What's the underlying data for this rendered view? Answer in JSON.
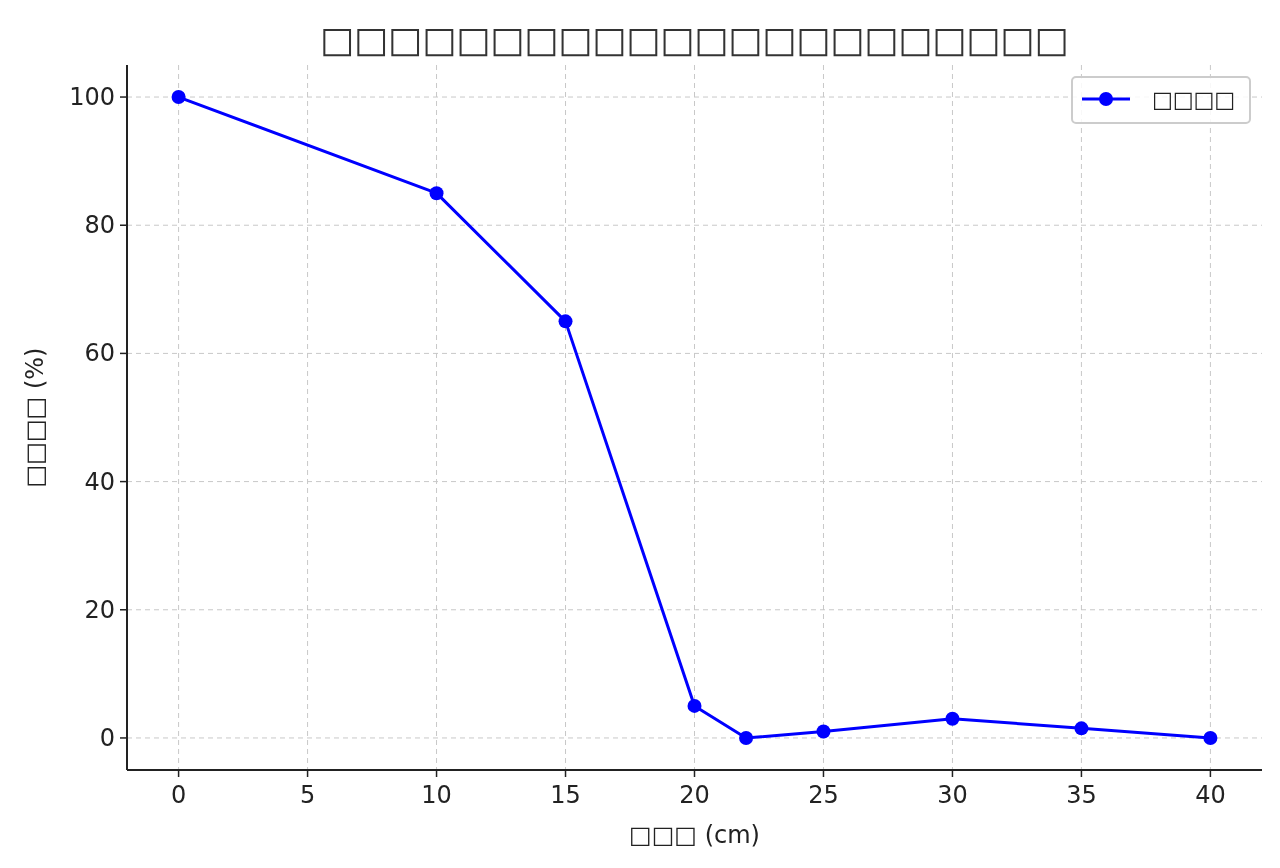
{
  "chart_data": {
    "type": "line",
    "title": "□□□□□□□□□□□□□□□□□□□□□□",
    "xlabel": "□□□ (cm)",
    "ylabel": "□□□□ (%)",
    "x": [
      0,
      10,
      15,
      20,
      22,
      25,
      30,
      35,
      40
    ],
    "series": [
      {
        "name": "□□□□",
        "color": "#0000ff",
        "values": [
          100,
          85,
          65,
          5,
          0,
          1,
          3,
          1.5,
          0
        ]
      }
    ],
    "xlim": [
      -2,
      42
    ],
    "xticks": [
      0,
      5,
      10,
      15,
      20,
      25,
      30,
      35,
      40
    ],
    "ylim": [
      -5,
      105
    ],
    "yticks": [
      0,
      20,
      40,
      60,
      80,
      100
    ],
    "grid": true,
    "legend": "top right",
    "marker": "circle",
    "line_style": "solid"
  }
}
